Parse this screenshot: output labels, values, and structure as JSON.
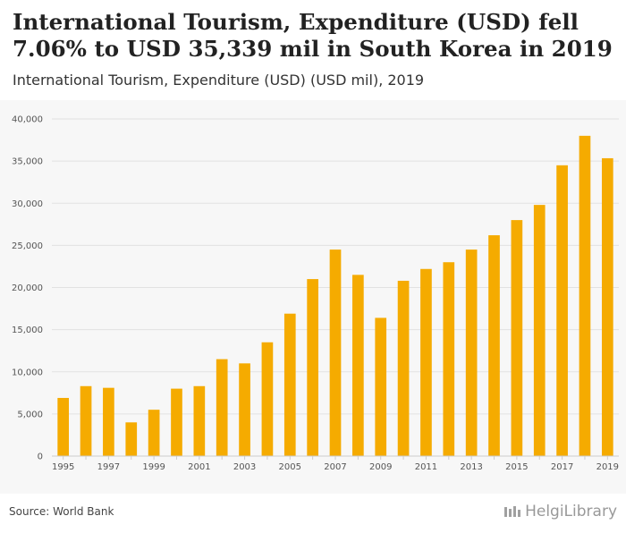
{
  "header": {
    "title": "International Tourism, Expenditure (USD) fell 7.06% to USD 35,339 mil in South Korea in 2019",
    "subtitle": "International Tourism, Expenditure (USD) (USD mil), 2019"
  },
  "footer": {
    "source": "Source: World Bank",
    "brand": "HelgiLibrary"
  },
  "colors": {
    "bar": "#f5ab00",
    "grid": "#e2e2e2",
    "background": "#f7f7f7"
  },
  "chart_data": {
    "type": "bar",
    "title": "International Tourism, Expenditure (USD) fell 7.06% to USD 35,339 mil in South Korea in 2019",
    "subtitle": "International Tourism, Expenditure (USD) (USD mil), 2019",
    "xlabel": "",
    "ylabel": "",
    "ylim": [
      0,
      40000
    ],
    "yticks": [
      0,
      5000,
      10000,
      15000,
      20000,
      25000,
      30000,
      35000,
      40000
    ],
    "ytick_labels": [
      "0",
      "5,000",
      "10,000",
      "15,000",
      "20,000",
      "25,000",
      "30,000",
      "35,000",
      "40,000"
    ],
    "categories": [
      "1995",
      "1996",
      "1997",
      "1998",
      "1999",
      "2000",
      "2001",
      "2002",
      "2003",
      "2004",
      "2005",
      "2006",
      "2007",
      "2008",
      "2009",
      "2010",
      "2011",
      "2012",
      "2013",
      "2014",
      "2015",
      "2016",
      "2017",
      "2018",
      "2019"
    ],
    "xtick_labels": [
      "1995",
      "1997",
      "1999",
      "2001",
      "2003",
      "2005",
      "2007",
      "2009",
      "2011",
      "2013",
      "2015",
      "2017",
      "2019"
    ],
    "values": [
      6900,
      8300,
      8100,
      4000,
      5500,
      8000,
      8300,
      11500,
      11000,
      13500,
      16900,
      21000,
      24500,
      21500,
      16400,
      20800,
      22200,
      23000,
      24500,
      26200,
      28000,
      29800,
      34500,
      38000,
      35339
    ],
    "grid": true,
    "legend": "none"
  }
}
